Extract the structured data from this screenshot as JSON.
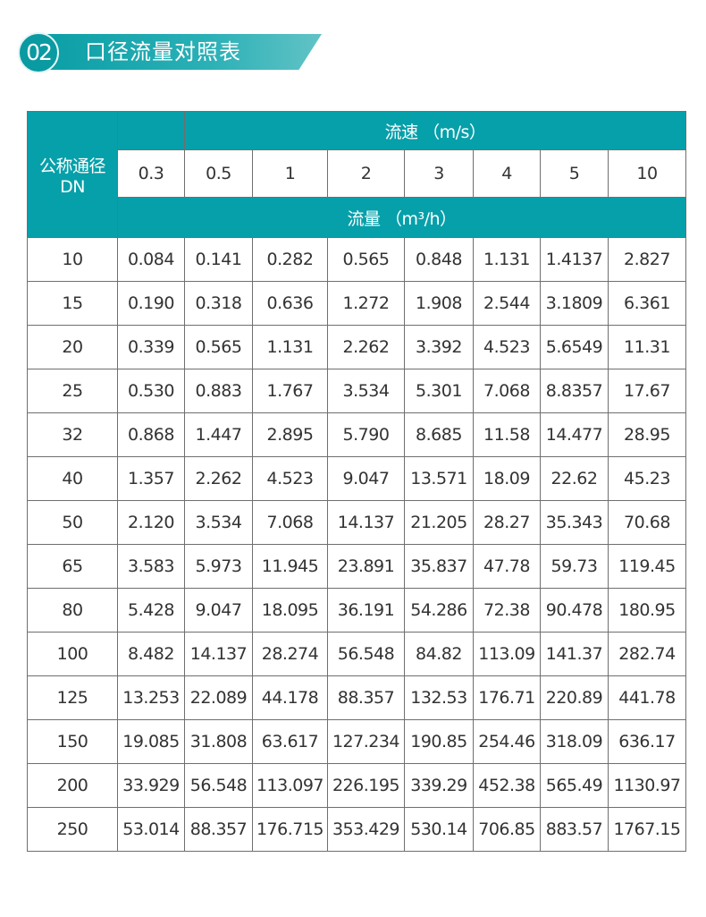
{
  "section": {
    "number": "02",
    "title": "口径流量对照表"
  },
  "table": {
    "dn_header": "公称通径",
    "dn_unit": "DN",
    "velocity_header": "流速 （m/s）",
    "flow_header": "流量 （m³/h）",
    "velocities": [
      "0.3",
      "0.5",
      "1",
      "2",
      "3",
      "4",
      "5",
      "10"
    ],
    "rows": [
      [
        "10",
        "0.084",
        "0.141",
        "0.282",
        "0.565",
        "0.848",
        "1.131",
        "1.4137",
        "2.827"
      ],
      [
        "15",
        "0.190",
        "0.318",
        "0.636",
        "1.272",
        "1.908",
        "2.544",
        "3.1809",
        "6.361"
      ],
      [
        "20",
        "0.339",
        "0.565",
        "1.131",
        "2.262",
        "3.392",
        "4.523",
        "5.6549",
        "11.31"
      ],
      [
        "25",
        "0.530",
        "0.883",
        "1.767",
        "3.534",
        "5.301",
        "7.068",
        "8.8357",
        "17.67"
      ],
      [
        "32",
        "0.868",
        "1.447",
        "2.895",
        "5.790",
        "8.685",
        "11.58",
        "14.477",
        "28.95"
      ],
      [
        "40",
        "1.357",
        "2.262",
        "4.523",
        "9.047",
        "13.571",
        "18.09",
        "22.62",
        "45.23"
      ],
      [
        "50",
        "2.120",
        "3.534",
        "7.068",
        "14.137",
        "21.205",
        "28.27",
        "35.343",
        "70.68"
      ],
      [
        "65",
        "3.583",
        "5.973",
        "11.945",
        "23.891",
        "35.837",
        "47.78",
        "59.73",
        "119.45"
      ],
      [
        "80",
        "5.428",
        "9.047",
        "18.095",
        "36.191",
        "54.286",
        "72.38",
        "90.478",
        "180.95"
      ],
      [
        "100",
        "8.482",
        "14.137",
        "28.274",
        "56.548",
        "84.82",
        "113.09",
        "141.37",
        "282.74"
      ],
      [
        "125",
        "13.253",
        "22.089",
        "44.178",
        "88.357",
        "132.53",
        "176.71",
        "220.89",
        "441.78"
      ],
      [
        "150",
        "19.085",
        "31.808",
        "63.617",
        "127.234",
        "190.85",
        "254.46",
        "318.09",
        "636.17"
      ],
      [
        "200",
        "33.929",
        "56.548",
        "113.097",
        "226.195",
        "339.29",
        "452.38",
        "565.49",
        "1130.97"
      ],
      [
        "250",
        "53.014",
        "88.357",
        "176.715",
        "353.429",
        "530.14",
        "706.85",
        "883.57",
        "1767.15"
      ]
    ]
  },
  "colors": {
    "header_teal": "#06a0aa",
    "border": "#6f6f6f"
  }
}
